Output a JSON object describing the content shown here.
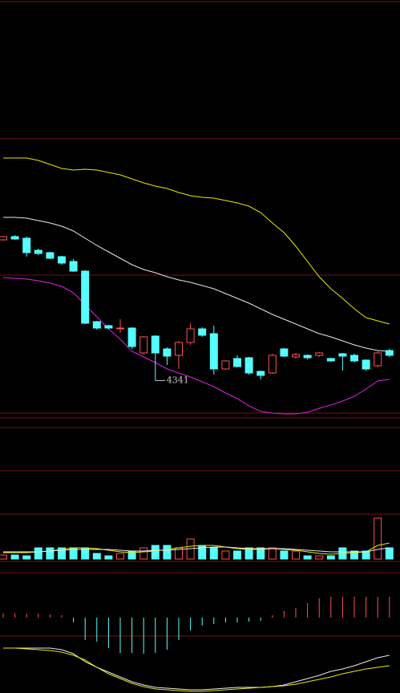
{
  "chart_data": [
    {
      "type": "candlestick",
      "up_color": "#ff5050",
      "down_color": "#54ffff",
      "ylim": [
        4250,
        4940
      ],
      "annotation": "4341",
      "annotation_index": 13,
      "open": [
        4692,
        4700,
        4696,
        4666,
        4660,
        4650,
        4638,
        4614,
        4488,
        4478,
        4472,
        4472,
        4410,
        4452,
        4420,
        4404,
        4436,
        4470,
        4458,
        4370,
        4396,
        4398,
        4364,
        4360,
        4420,
        4400,
        4404,
        4404,
        4396,
        4408,
        4404,
        4392,
        4378,
        4416
      ],
      "high": [
        4702,
        4704,
        4700,
        4670,
        4662,
        4652,
        4644,
        4616,
        4490,
        4480,
        4494,
        4474,
        4452,
        4454,
        4424,
        4440,
        4484,
        4474,
        4478,
        4392,
        4404,
        4400,
        4366,
        4408,
        4422,
        4410,
        4406,
        4412,
        4398,
        4410,
        4408,
        4394,
        4414,
        4420
      ],
      "low": [
        4690,
        4692,
        4650,
        4654,
        4644,
        4630,
        4612,
        4482,
        4468,
        4470,
        4460,
        4420,
        4406,
        4341,
        4380,
        4370,
        4430,
        4450,
        4356,
        4368,
        4374,
        4356,
        4344,
        4358,
        4400,
        4396,
        4394,
        4400,
        4388,
        4366,
        4386,
        4366,
        4374,
        4400
      ],
      "close": [
        4700,
        4694,
        4660,
        4658,
        4646,
        4634,
        4614,
        4484,
        4472,
        4472,
        4472,
        4426,
        4450,
        4410,
        4402,
        4436,
        4470,
        4454,
        4370,
        4390,
        4376,
        4360,
        4354,
        4404,
        4402,
        4406,
        4398,
        4410,
        4390,
        4402,
        4390,
        4370,
        4410,
        4404
      ],
      "series": [
        {
          "color": "#e8e800",
          "values": [
            4896,
            4896,
            4896,
            4890,
            4880,
            4870,
            4866,
            4868,
            4866,
            4860,
            4854,
            4844,
            4834,
            4826,
            4820,
            4810,
            4802,
            4798,
            4796,
            4790,
            4784,
            4776,
            4760,
            4734,
            4710,
            4676,
            4638,
            4600,
            4570,
            4546,
            4520,
            4498,
            4490,
            4482
          ]
        },
        {
          "color": "#e8e8e8",
          "values": [
            4748,
            4748,
            4746,
            4740,
            4734,
            4726,
            4714,
            4696,
            4678,
            4662,
            4646,
            4630,
            4618,
            4610,
            4600,
            4592,
            4586,
            4578,
            4570,
            4558,
            4546,
            4534,
            4520,
            4506,
            4494,
            4482,
            4470,
            4458,
            4450,
            4440,
            4430,
            4422,
            4416,
            4414
          ]
        },
        {
          "color": "#e020e0",
          "values": [
            4598,
            4596,
            4594,
            4590,
            4584,
            4576,
            4560,
            4530,
            4500,
            4470,
            4444,
            4414,
            4400,
            4386,
            4370,
            4360,
            4350,
            4338,
            4326,
            4310,
            4296,
            4278,
            4264,
            4260,
            4258,
            4258,
            4262,
            4272,
            4280,
            4290,
            4302,
            4320,
            4340,
            4344
          ]
        }
      ]
    },
    {
      "type": "volume",
      "ylim": [
        0,
        54
      ],
      "values": [
        5,
        5,
        4,
        14,
        14,
        14,
        14,
        14,
        7,
        4,
        7,
        10,
        14,
        17,
        17,
        14,
        25,
        17,
        14,
        10,
        10,
        14,
        14,
        14,
        10,
        10,
        4,
        4,
        4,
        14,
        10,
        10,
        51,
        14
      ],
      "series": [
        {
          "color": "#e8e800",
          "values": [
            8,
            8,
            8,
            9,
            10,
            12,
            14,
            14,
            13,
            11,
            9,
            8,
            9,
            10,
            12,
            14,
            16,
            17,
            17,
            15,
            13,
            12,
            12,
            13,
            12,
            11,
            9,
            7,
            6,
            7,
            8,
            9,
            17,
            20
          ]
        },
        {
          "color": "#e8e8e8",
          "values": [
            9,
            9,
            9,
            9,
            10,
            11,
            12,
            12,
            12,
            12,
            11,
            10,
            10,
            11,
            11,
            12,
            13,
            14,
            15,
            15,
            14,
            13,
            13,
            13,
            13,
            12,
            11,
            10,
            9,
            9,
            9,
            9,
            12,
            14
          ]
        }
      ]
    },
    {
      "type": "macd",
      "ylim": [
        -94,
        50
      ],
      "up_color": "#ff5050",
      "down_color": "#54ffff",
      "values": [
        5,
        5,
        5,
        5,
        4,
        3,
        -6,
        -28,
        -30,
        -38,
        -44,
        -44,
        -45,
        -44,
        -40,
        -28,
        -16,
        -10,
        -8,
        -6,
        -6,
        -5,
        -4,
        3,
        8,
        12,
        18,
        24,
        26,
        26,
        26,
        26,
        26,
        26
      ],
      "series": [
        {
          "color": "#e8e8e8",
          "values": [
            -38,
            -38,
            -38,
            -38,
            -38,
            -40,
            -45,
            -55,
            -62,
            -68,
            -74,
            -80,
            -84,
            -87,
            -88,
            -89,
            -90,
            -90,
            -89,
            -88,
            -87,
            -87,
            -87,
            -86,
            -84,
            -80,
            -76,
            -72,
            -67,
            -64,
            -60,
            -55,
            -50,
            -47
          ]
        },
        {
          "color": "#e8e800",
          "values": [
            -38,
            -38,
            -39,
            -40,
            -41,
            -43,
            -47,
            -53,
            -62,
            -70,
            -76,
            -82,
            -86,
            -89,
            -90,
            -91,
            -92,
            -92,
            -91,
            -90,
            -89,
            -88,
            -87,
            -86,
            -85,
            -83,
            -80,
            -77,
            -74,
            -70,
            -67,
            -64,
            -62,
            -60
          ]
        }
      ]
    }
  ]
}
